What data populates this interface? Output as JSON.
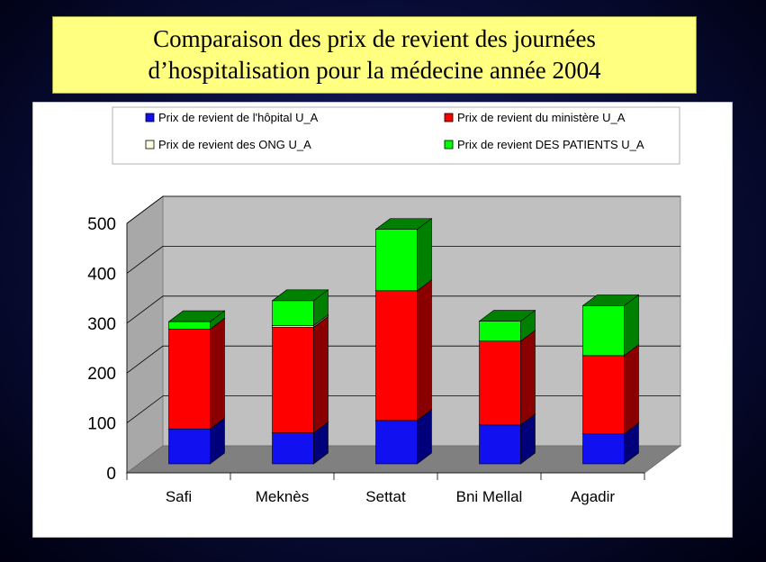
{
  "title": {
    "line1": "Comparaison des prix de revient des journées",
    "line2": "d’hospitalisation pour la médecine année 2004"
  },
  "chart_data": {
    "type": "bar",
    "stacked": true,
    "three_d": true,
    "categories": [
      "Safi",
      "Meknès",
      "Settat",
      "Bni Mellal",
      "Agadir"
    ],
    "series": [
      {
        "name": "Prix de revient de l'hôpital U_A",
        "color": "#1010f0",
        "side": "#00007a",
        "values": [
          70,
          62,
          87,
          78,
          60
        ]
      },
      {
        "name": "Prix de revient du ministère U_A",
        "color": "#ff0000",
        "side": "#8a0000",
        "values": [
          200,
          212,
          260,
          168,
          157
        ]
      },
      {
        "name": "Prix de revient des ONG U_A",
        "color": "#ffffe0",
        "side": "#a0a080",
        "values": [
          0,
          3,
          0,
          0,
          0
        ]
      },
      {
        "name": "Prix de revient DES PATIENTS U_A",
        "color": "#00ff00",
        "side": "#008000",
        "values": [
          15,
          50,
          123,
          40,
          100
        ]
      }
    ],
    "y_ticks": [
      0,
      100,
      200,
      300,
      400,
      500
    ],
    "ylim": [
      0,
      500
    ],
    "grid": true,
    "legend_position": "top"
  }
}
